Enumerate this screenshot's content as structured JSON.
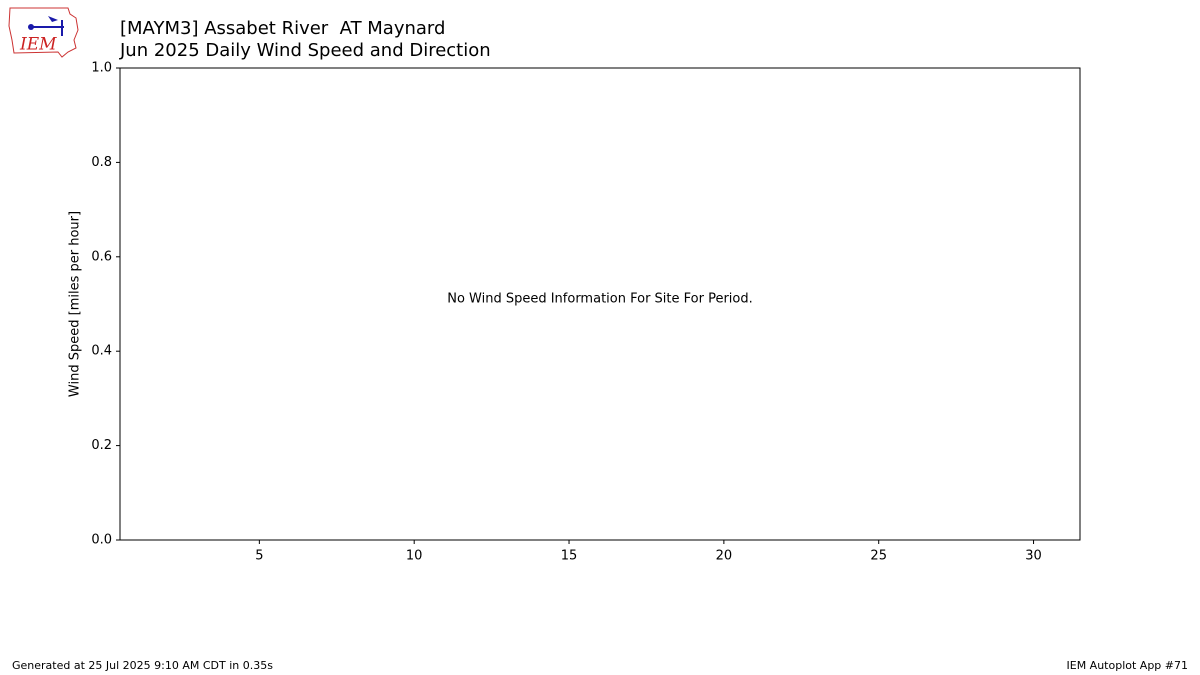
{
  "chart_data": {
    "type": "line",
    "title": "[MAYM3] Assabet River  AT Maynard",
    "subtitle": "Jun 2025 Daily Wind Speed and Direction",
    "ylabel": "Wind Speed [miles per hour]",
    "annotation": "No Wind Speed Information For Site For Period.",
    "series": [],
    "xlim": [
      0.5,
      31.5
    ],
    "xticks": [
      5,
      10,
      15,
      20,
      25,
      30
    ],
    "ylim": [
      0,
      1
    ],
    "yticks": [
      {
        "value": 0,
        "label": "0.0"
      },
      0.2,
      0.4,
      0.6,
      0.8,
      {
        "value": 1,
        "label": "1.0"
      }
    ],
    "grid": false
  },
  "footer": {
    "left": "Generated at 25 Jul 2025 9:10 AM CDT in 0.35s",
    "right": "IEM Autoplot App #71"
  },
  "logo": {
    "text": "IEM"
  }
}
